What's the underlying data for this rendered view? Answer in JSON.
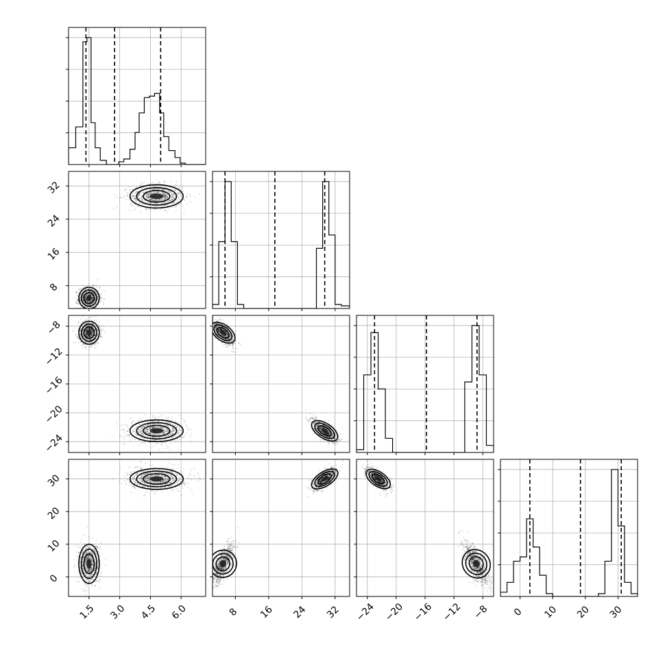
{
  "chart_data": {
    "type": "corner",
    "parameters": [
      {
        "name": "",
        "range": [
          0.5,
          7.2
        ],
        "ticks": [
          1.5,
          3.0,
          4.5,
          6.0
        ],
        "tick_labels": [
          "1.5",
          "3.0",
          "4.5",
          "6.0"
        ]
      },
      {
        "name": "",
        "range": [
          2.5,
          35.5
        ],
        "ticks": [
          8,
          16,
          24,
          32
        ],
        "tick_labels": [
          "8",
          "16",
          "24",
          "32"
        ]
      },
      {
        "name": "",
        "range": [
          -25.5,
          -6.5
        ],
        "ticks": [
          -24,
          -20,
          -16,
          -12,
          -8
        ],
        "tick_labels": [
          "−24",
          "−20",
          "−16",
          "−12",
          "−8"
        ]
      },
      {
        "name": "",
        "range": [
          -6,
          36
        ],
        "ticks": [
          0,
          10,
          20,
          30
        ],
        "tick_labels": [
          "0",
          "10",
          "20",
          "30"
        ]
      }
    ],
    "quantiles": [
      [
        1.35,
        2.75,
        5.0
      ],
      [
        5.5,
        17.5,
        29.5
      ],
      [
        -23.0,
        -15.8,
        -8.8
      ],
      [
        3.0,
        18.5,
        31.0
      ]
    ],
    "histograms": [
      {
        "edges": [
          0.5,
          0.85,
          1.2,
          1.4,
          1.6,
          1.8,
          2.05,
          2.35,
          2.65,
          2.95,
          3.2,
          3.5,
          3.75,
          3.95,
          4.2,
          4.45,
          4.7,
          4.95,
          5.15,
          5.4,
          5.7,
          5.95,
          6.2,
          6.5,
          6.85,
          7.2
        ],
        "counts": [
          0.12,
          0.27,
          0.88,
          0.91,
          0.3,
          0.12,
          0.03,
          0.0,
          0.0,
          0.02,
          0.04,
          0.11,
          0.23,
          0.37,
          0.48,
          0.49,
          0.51,
          0.37,
          0.2,
          0.1,
          0.05,
          0.01,
          0.0,
          0.0,
          0.0
        ]
      },
      {
        "edges": [
          2.5,
          4.0,
          5.5,
          7.0,
          8.5,
          10.0,
          26.0,
          27.5,
          29.0,
          30.5,
          32.0,
          33.5,
          35.5
        ],
        "counts": [
          0.03,
          0.5,
          0.95,
          0.5,
          0.03,
          0.0,
          0.0,
          0.45,
          0.95,
          0.55,
          0.03,
          0.02
        ]
      },
      {
        "edges": [
          -25.5,
          -24.5,
          -23.5,
          -22.5,
          -21.5,
          -20.5,
          -19.5,
          -10.5,
          -9.5,
          -8.5,
          -7.5,
          -6.5
        ],
        "counts": [
          0.02,
          0.55,
          0.85,
          0.45,
          0.1,
          0.0,
          0.0,
          0.5,
          0.9,
          0.55,
          0.05
        ]
      },
      {
        "edges": [
          -6,
          -4,
          -2,
          0,
          2,
          4,
          6,
          8,
          10,
          12,
          24,
          26,
          28,
          30,
          32,
          34,
          36
        ],
        "counts": [
          0.03,
          0.1,
          0.25,
          0.28,
          0.55,
          0.35,
          0.15,
          0.02,
          0.0,
          0.0,
          0.02,
          0.25,
          0.9,
          0.5,
          0.1,
          0.02
        ]
      }
    ],
    "modes": [
      {
        "weight": 0.5,
        "mean": [
          1.5,
          5.0,
          -8.9,
          4.0
        ],
        "sigma": [
          0.25,
          1.3,
          0.8,
          3.0
        ]
      },
      {
        "weight": 0.5,
        "mean": [
          4.8,
          29.5,
          -22.5,
          30.0
        ],
        "sigma": [
          0.65,
          1.4,
          0.75,
          1.6
        ]
      }
    ],
    "correlations": {
      "0-1": 0.0,
      "0-2": 0.0,
      "0-3": 0.0,
      "1-2": -0.7,
      "1-3": 0.7,
      "2-3": -0.7
    },
    "grid": true
  }
}
